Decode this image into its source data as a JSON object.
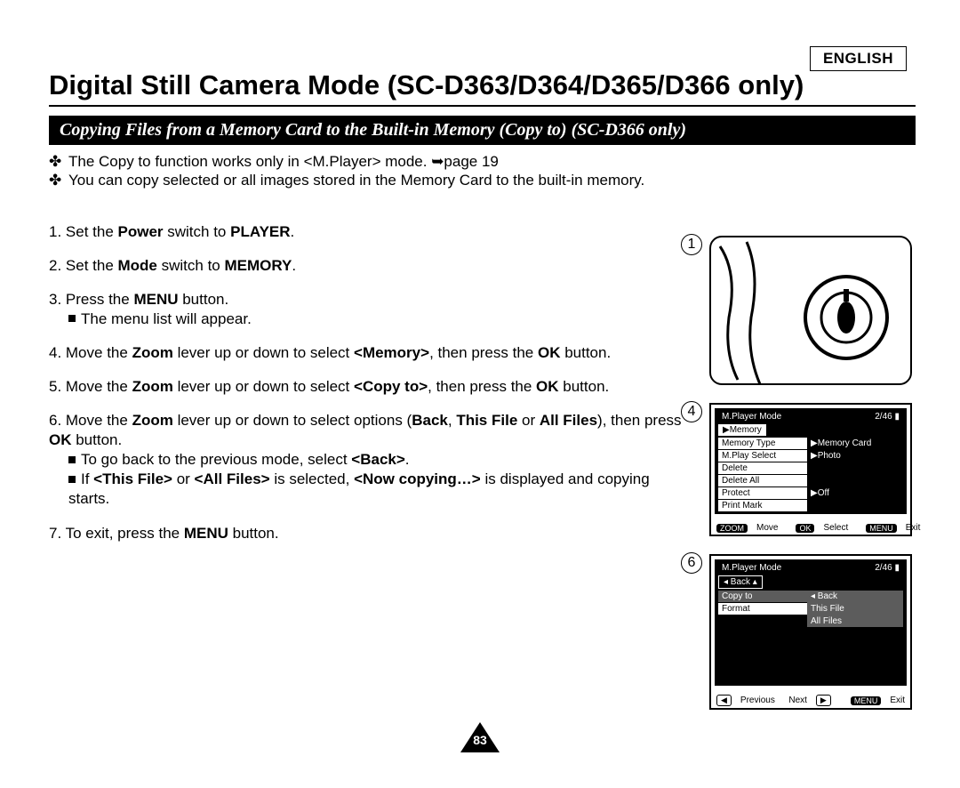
{
  "language_label": "ENGLISH",
  "title": "Digital Still Camera Mode (SC-D363/D364/D365/D366 only)",
  "subtitle": "Copying Files from a Memory Card to the Built-in Memory (Copy to) (SC-D366 only)",
  "intro": [
    "The Copy to function works only in <M.Player> mode. ➥page 19",
    "You can copy selected or all images stored in the Memory Card to the built-in memory."
  ],
  "bullet_glyph": "✤",
  "steps": {
    "s1": "1. Set the [b]Power[/b] switch to [b]PLAYER[/b].",
    "s2": "2. Set the [b]Mode[/b] switch to [b]MEMORY[/b].",
    "s3": "3. Press the [b]MENU[/b] button.",
    "s3a": "The menu list will appear.",
    "s4": "4. Move the [b]Zoom[/b] lever up or down to select [b]<Memory>[/b], then press the [b]OK[/b] button.",
    "s5": "5. Move the [b]Zoom[/b] lever up or down to select [b]<Copy to>[/b], then press the [b]OK[/b] button.",
    "s6": "6. Move the [b]Zoom[/b] lever up or down to select options ([b]Back[/b], [b]This File[/b] or [b]All Files[/b]), then press [b]OK[/b] button.",
    "s6a": "To go back to the previous mode, select [b]<Back>[/b].",
    "s6b": "If [b]<This File>[/b] or [b]<All Files>[/b] is selected, [b]<Now copying…>[/b] is displayed and copying starts.",
    "s7": "7. To exit, press the [b]MENU[/b] button."
  },
  "fig1": {
    "badge": "1"
  },
  "fig4": {
    "badge": "4",
    "header_left": "M.Player Mode",
    "header_right": "2/46",
    "tab": "▶Memory",
    "items": [
      {
        "l": "Memory Type",
        "r": "▶Memory Card"
      },
      {
        "l": "M.Play Select",
        "r": "▶Photo"
      },
      {
        "l": "Delete",
        "r": ""
      },
      {
        "l": "Delete All",
        "r": ""
      },
      {
        "l": "Protect",
        "r": "▶Off"
      },
      {
        "l": "Print Mark",
        "r": ""
      }
    ],
    "footer": [
      {
        "pill": "ZOOM",
        "t": "Move"
      },
      {
        "pill": "OK",
        "t": "Select"
      },
      {
        "pill": "MENU",
        "t": "Exit"
      }
    ]
  },
  "fig6": {
    "badge": "6",
    "header_left": "M.Player Mode",
    "header_right": "2/46",
    "tab": "◂ Back ▴",
    "items": [
      {
        "l": "Copy to",
        "r": "◂ Back",
        "hl": true
      },
      {
        "l": "Format",
        "r": "This File",
        "hl_r": true
      },
      {
        "l": "",
        "r": "All Files",
        "hl_r": true
      }
    ],
    "footer_prev": "Previous",
    "footer_next": "Next",
    "footer_exit_pill": "MENU",
    "footer_exit": "Exit"
  },
  "page_number": "83",
  "colors": {
    "bg": "#ffffff",
    "fg": "#000000",
    "hl": "#5c5c5c"
  }
}
